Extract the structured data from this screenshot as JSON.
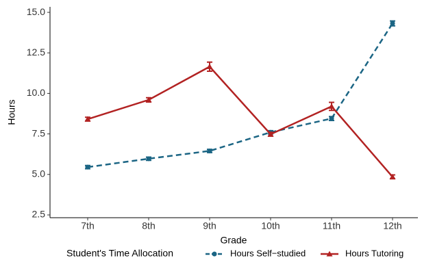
{
  "chart_data": {
    "type": "line",
    "x_label": "Grade",
    "y_label": "Hours",
    "legend_title": "Student's Time Allocation",
    "categories": [
      "7th",
      "8th",
      "9th",
      "10th",
      "11th",
      "12th"
    ],
    "series": [
      {
        "name": "Hours Self−studied",
        "color": "#1b6584",
        "dashed": true,
        "marker": "circle",
        "values": [
          5.45,
          5.97,
          6.45,
          7.6,
          8.45,
          14.32
        ],
        "errors": [
          0.1,
          0.1,
          0.1,
          0.1,
          0.12,
          0.15
        ]
      },
      {
        "name": "Hours Tutoring",
        "color": "#b22222",
        "dashed": false,
        "marker": "triangle",
        "values": [
          8.41,
          9.6,
          11.65,
          7.48,
          9.2,
          4.85
        ],
        "errors": [
          0.12,
          0.13,
          0.28,
          0.12,
          0.25,
          0.12
        ]
      }
    ],
    "ylim": [
      2.33,
      15.34
    ],
    "yticks": [
      {
        "value": 2.5,
        "label": "2.5"
      },
      {
        "value": 5,
        "label": "5.0"
      },
      {
        "value": 7.5,
        "label": "7.5"
      },
      {
        "value": 10,
        "label": "10.0"
      },
      {
        "value": 12.5,
        "label": "12.5"
      },
      {
        "value": 15,
        "label": "15.0"
      }
    ],
    "legend_position": "bottom"
  }
}
